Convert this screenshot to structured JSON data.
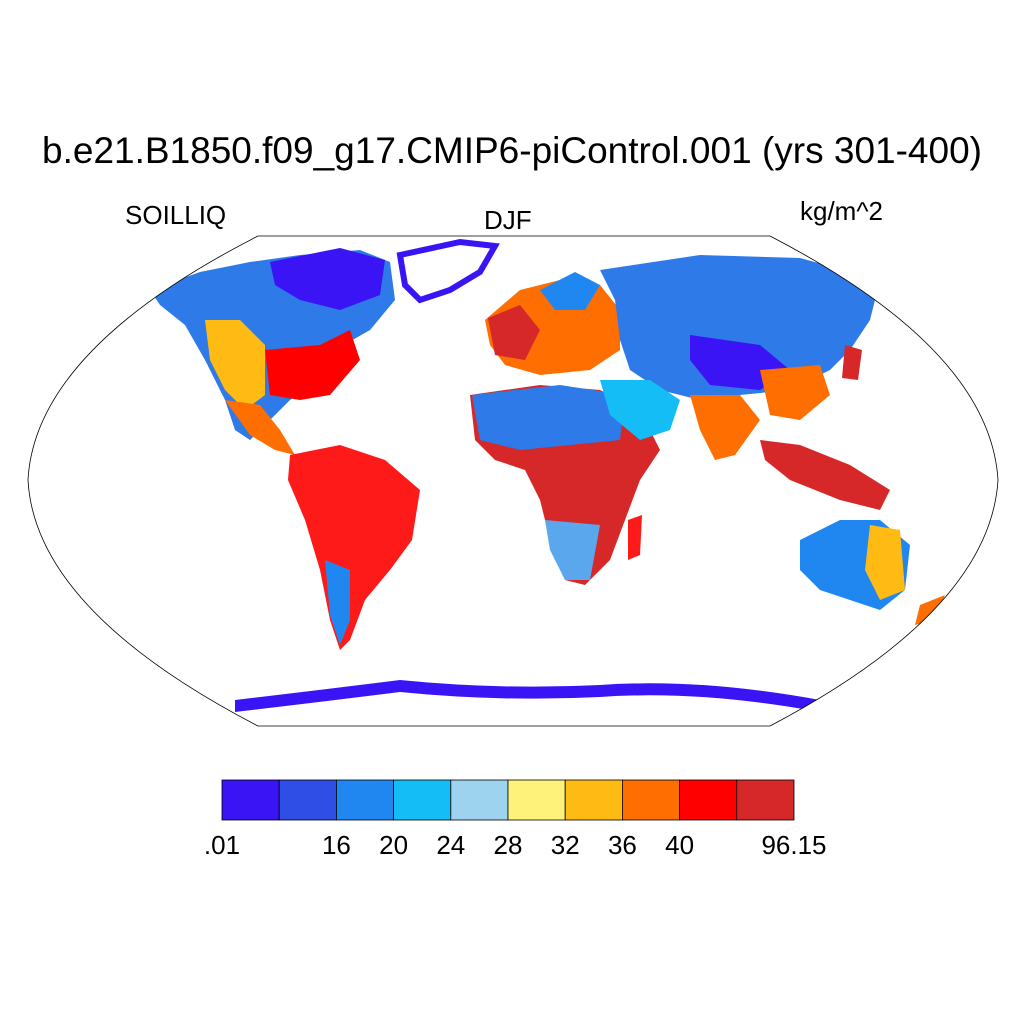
{
  "figure": {
    "title": "b.e21.B1850.f09_g17.CMIP6-piControl.001 (yrs 301-400)",
    "left_label": "SOILLIQ",
    "center_label": "DJF",
    "right_label": "kg/m^2"
  },
  "map": {
    "projection": "Robinson",
    "variable": "SOILLIQ",
    "season": "DJF",
    "units": "kg/m^2"
  },
  "colorbar": {
    "colors": [
      "#3b14f5",
      "#2e4ee6",
      "#2087f0",
      "#14bdf5",
      "#9ed3ef",
      "#fff27a",
      "#ffbb14",
      "#ff6e00",
      "#ff0000",
      "#d62828"
    ],
    "tick_labels": [
      ".01",
      "",
      "16",
      "20",
      "24",
      "28",
      "32",
      "36",
      "40",
      "",
      "96.15"
    ]
  }
}
